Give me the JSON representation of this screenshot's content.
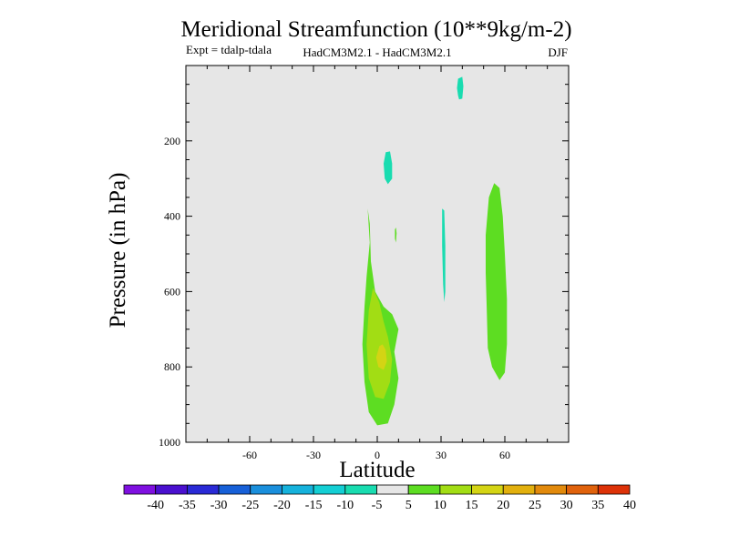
{
  "chart_data": {
    "type": "contour",
    "title": "Meridional Streamfunction (10**9kg/m-2)",
    "subtitle_left": "Expt = tdalp-tdala",
    "subtitle_center": "HadCM3M2.1 - HadCM3M2.1",
    "subtitle_right": "DJF",
    "xlabel": "Latitude",
    "ylabel": "Pressure (in hPa)",
    "xlim": [
      -90,
      90
    ],
    "ylim": [
      0,
      1000
    ],
    "x_ticks": [
      -60,
      -30,
      0,
      30,
      60
    ],
    "y_ticks": [
      200,
      400,
      600,
      800,
      1000
    ],
    "colorbar": {
      "levels": [
        -40,
        -35,
        -30,
        -25,
        -20,
        -15,
        -10,
        -5,
        5,
        10,
        15,
        20,
        25,
        30,
        35,
        40
      ],
      "colors": [
        "#7f10e0",
        "#4a10cf",
        "#2a2ad6",
        "#1760d8",
        "#1a8fdc",
        "#16b2dc",
        "#14cfd4",
        "#19dcb0",
        "#e6e6e6",
        "#5ddd22",
        "#a2dd14",
        "#d4d414",
        "#e2b00e",
        "#e28a0c",
        "#e0620c",
        "#dd3208"
      ]
    },
    "regions": [
      {
        "name": "pos-5-10-sh",
        "color": "#5ddd22",
        "points": [
          [
            -4.5,
            380
          ],
          [
            -3.5,
            470
          ],
          [
            -5,
            560
          ],
          [
            -6,
            640
          ],
          [
            -7,
            740
          ],
          [
            -6,
            840
          ],
          [
            -4,
            920
          ],
          [
            0,
            955
          ],
          [
            5,
            950
          ],
          [
            8,
            900
          ],
          [
            10,
            830
          ],
          [
            8,
            760
          ],
          [
            10,
            700
          ],
          [
            7,
            660
          ],
          [
            3,
            640
          ],
          [
            -1,
            600
          ],
          [
            -3,
            520
          ],
          [
            -3.5,
            420
          ]
        ]
      },
      {
        "name": "pos-10-15-sh",
        "color": "#a2dd14",
        "points": [
          [
            -2,
            590
          ],
          [
            -4,
            650
          ],
          [
            -5,
            740
          ],
          [
            -4,
            830
          ],
          [
            -1,
            880
          ],
          [
            3,
            885
          ],
          [
            6,
            840
          ],
          [
            7,
            780
          ],
          [
            5,
            720
          ],
          [
            3,
            680
          ],
          [
            1,
            630
          ]
        ]
      },
      {
        "name": "pos-15-20-sh",
        "color": "#d4d414",
        "points": [
          [
            1,
            745
          ],
          [
            -0.5,
            775
          ],
          [
            0.5,
            800
          ],
          [
            3,
            808
          ],
          [
            4.5,
            785
          ],
          [
            4,
            755
          ],
          [
            2.5,
            740
          ]
        ]
      },
      {
        "name": "pos-5-10-nh",
        "color": "#5ddd22",
        "points": [
          [
            55,
            312
          ],
          [
            52.5,
            350
          ],
          [
            51,
            450
          ],
          [
            51,
            550
          ],
          [
            51.5,
            650
          ],
          [
            52,
            750
          ],
          [
            54,
            800
          ],
          [
            57.5,
            835
          ],
          [
            60,
            815
          ],
          [
            61,
            740
          ],
          [
            61,
            620
          ],
          [
            60,
            500
          ],
          [
            59,
            400
          ],
          [
            57.5,
            325
          ]
        ]
      },
      {
        "name": "neg-5-10-top",
        "color": "#19dcb0",
        "points": [
          [
            38,
            80
          ],
          [
            37.5,
            60
          ],
          [
            38,
            35
          ],
          [
            40,
            30
          ],
          [
            40.5,
            55
          ],
          [
            40,
            88
          ],
          [
            38.5,
            90
          ]
        ]
      },
      {
        "name": "neg-5-10-mid",
        "color": "#19dcb0",
        "points": [
          [
            4,
            230
          ],
          [
            3,
            260
          ],
          [
            3.5,
            300
          ],
          [
            5,
            315
          ],
          [
            7,
            300
          ],
          [
            7,
            260
          ],
          [
            6,
            228
          ]
        ]
      },
      {
        "name": "neg-5-10-30n",
        "color": "#19dcb0",
        "points": [
          [
            30.5,
            380
          ],
          [
            30.5,
            480
          ],
          [
            31,
            580
          ],
          [
            31.5,
            628
          ],
          [
            32,
            600
          ],
          [
            32,
            480
          ],
          [
            31.5,
            385
          ]
        ]
      },
      {
        "name": "pos-blip-10n",
        "color": "#5ddd22",
        "points": [
          [
            8.3,
            435
          ],
          [
            8.3,
            460
          ],
          [
            8.8,
            470
          ],
          [
            9.1,
            445
          ],
          [
            8.8,
            430
          ]
        ]
      }
    ]
  }
}
